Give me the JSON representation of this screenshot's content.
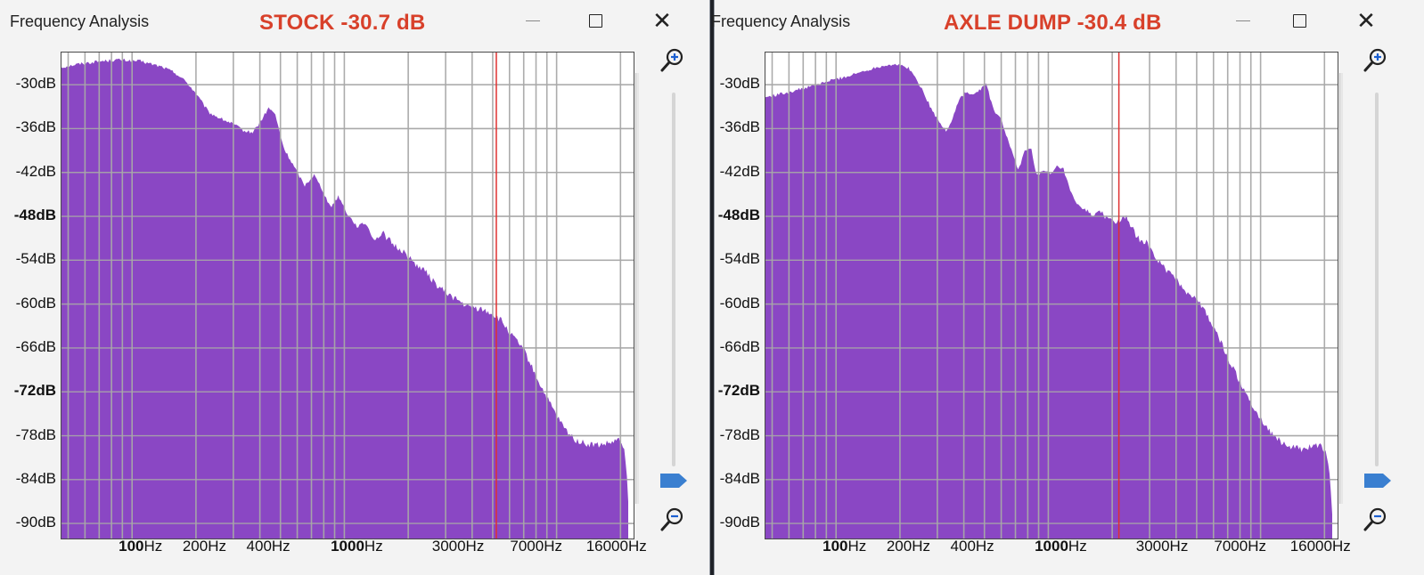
{
  "windows": [
    {
      "id": "left",
      "title": "Frequency Analysis",
      "banner": "STOCK -30.7 dB",
      "y_labels": [
        "-30dB",
        "-36dB",
        "-42dB",
        "-48dB",
        "-54dB",
        "-60dB",
        "-66dB",
        "-72dB",
        "-78dB",
        "-84dB",
        "-90dB"
      ],
      "x_labels": [
        "100Hz",
        "200Hz",
        "400Hz",
        "1000Hz",
        "3000Hz",
        "7000Hz",
        "16000Hz"
      ],
      "cursor_hz": 5200,
      "spectrum_db": [
        [
          47,
          -27.6
        ],
        [
          55,
          -27.2
        ],
        [
          70,
          -26.8
        ],
        [
          85,
          -26.6
        ],
        [
          110,
          -26.8
        ],
        [
          140,
          -27.6
        ],
        [
          160,
          -28.4
        ],
        [
          180,
          -29.6
        ],
        [
          200,
          -31.2
        ],
        [
          230,
          -33.8
        ],
        [
          260,
          -34.6
        ],
        [
          300,
          -35.4
        ],
        [
          340,
          -36.4
        ],
        [
          370,
          -36.5
        ],
        [
          400,
          -35.2
        ],
        [
          440,
          -33.2
        ],
        [
          470,
          -33.9
        ],
        [
          520,
          -38.8
        ],
        [
          580,
          -41.2
        ],
        [
          650,
          -43.8
        ],
        [
          720,
          -42.3
        ],
        [
          790,
          -44.4
        ],
        [
          860,
          -46.8
        ],
        [
          940,
          -45.2
        ],
        [
          1030,
          -47.6
        ],
        [
          1150,
          -49.4
        ],
        [
          1260,
          -48.9
        ],
        [
          1380,
          -51.2
        ],
        [
          1530,
          -50.4
        ],
        [
          1700,
          -51.9
        ],
        [
          1900,
          -52.8
        ],
        [
          2100,
          -54.2
        ],
        [
          2400,
          -55.5
        ],
        [
          2700,
          -57.3
        ],
        [
          3000,
          -58.4
        ],
        [
          3400,
          -59.4
        ],
        [
          3800,
          -60.4
        ],
        [
          4300,
          -60.6
        ],
        [
          4900,
          -61.2
        ],
        [
          5500,
          -62.3
        ],
        [
          6100,
          -64.2
        ],
        [
          7000,
          -66.2
        ],
        [
          7800,
          -69.2
        ],
        [
          8800,
          -72.3
        ],
        [
          10000,
          -75.3
        ],
        [
          11000,
          -77.2
        ],
        [
          12300,
          -78.6
        ],
        [
          14000,
          -79.2
        ],
        [
          16000,
          -79.3
        ],
        [
          18000,
          -79.0
        ],
        [
          19500,
          -78.6
        ],
        [
          20700,
          -79.3
        ],
        [
          21500,
          -84.0
        ],
        [
          22050,
          -91.5
        ]
      ]
    },
    {
      "id": "right",
      "title": "Frequency Analysis",
      "banner": "AXLE DUMP -30.4 dB",
      "y_labels": [
        "-30dB",
        "-36dB",
        "-42dB",
        "-48dB",
        "-54dB",
        "-60dB",
        "-66dB",
        "-72dB",
        "-78dB",
        "-84dB",
        "-90dB"
      ],
      "x_labels": [
        "100Hz",
        "200Hz",
        "400Hz",
        "1000Hz",
        "3000Hz",
        "7000Hz",
        "16000Hz"
      ],
      "cursor_hz": 2150,
      "spectrum_db": [
        [
          47,
          -31.7
        ],
        [
          60,
          -31.0
        ],
        [
          75,
          -30.3
        ],
        [
          95,
          -29.4
        ],
        [
          115,
          -28.8
        ],
        [
          140,
          -28.0
        ],
        [
          165,
          -27.4
        ],
        [
          190,
          -27.2
        ],
        [
          220,
          -27.7
        ],
        [
          250,
          -30.2
        ],
        [
          280,
          -33.2
        ],
        [
          310,
          -35.4
        ],
        [
          330,
          -36.3
        ],
        [
          350,
          -35.0
        ],
        [
          380,
          -32.0
        ],
        [
          410,
          -31.0
        ],
        [
          440,
          -31.5
        ],
        [
          480,
          -30.6
        ],
        [
          510,
          -29.8
        ],
        [
          550,
          -33.4
        ],
        [
          600,
          -34.8
        ],
        [
          660,
          -38.4
        ],
        [
          720,
          -41.7
        ],
        [
          780,
          -38.9
        ],
        [
          830,
          -38.7
        ],
        [
          880,
          -42.3
        ],
        [
          960,
          -41.8
        ],
        [
          1030,
          -42.3
        ],
        [
          1100,
          -41.2
        ],
        [
          1180,
          -41.6
        ],
        [
          1260,
          -44.3
        ],
        [
          1350,
          -46.3
        ],
        [
          1480,
          -47.1
        ],
        [
          1620,
          -47.7
        ],
        [
          1780,
          -47.6
        ],
        [
          1950,
          -48.4
        ],
        [
          2150,
          -48.8
        ],
        [
          2350,
          -48.1
        ],
        [
          2600,
          -50.9
        ],
        [
          2900,
          -51.6
        ],
        [
          3200,
          -53.7
        ],
        [
          3600,
          -55.3
        ],
        [
          4000,
          -56.7
        ],
        [
          4500,
          -58.4
        ],
        [
          5000,
          -59.2
        ],
        [
          5600,
          -61.6
        ],
        [
          6300,
          -64.3
        ],
        [
          7000,
          -67.4
        ],
        [
          8000,
          -70.6
        ],
        [
          9000,
          -73.4
        ],
        [
          10000,
          -75.7
        ],
        [
          11200,
          -77.5
        ],
        [
          12500,
          -78.9
        ],
        [
          14000,
          -79.6
        ],
        [
          16000,
          -79.9
        ],
        [
          18000,
          -79.3
        ],
        [
          19500,
          -79.5
        ],
        [
          20500,
          -80.6
        ],
        [
          21300,
          -84.4
        ],
        [
          22050,
          -91.5
        ]
      ]
    }
  ],
  "controls": {
    "minimize_glyph": "—",
    "close_glyph": "✕"
  },
  "colors": {
    "fill": "#8a47c4",
    "grid": "#a8a8a8",
    "cursor": "#e03030",
    "banner": "#d8402a",
    "slider_thumb": "#3a7fd0"
  },
  "icons": [
    "zoom-in-icon",
    "zoom-out-icon",
    "minimize-icon",
    "maximize-icon",
    "close-icon"
  ]
}
